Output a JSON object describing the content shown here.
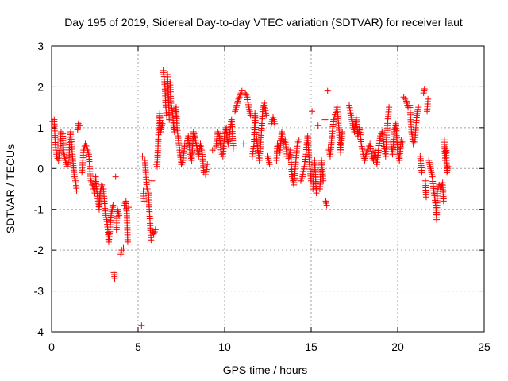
{
  "chart_data": {
    "type": "scatter",
    "title": "Day 195 of 2019, Sidereal Day-to-day VTEC variation (SDTVAR) for receiver laut",
    "xlabel": "GPS time / hours",
    "ylabel": "SDTVAR / TECUs",
    "xlim": [
      0,
      25
    ],
    "ylim": [
      -4,
      3
    ],
    "xticks": [
      0,
      5,
      10,
      15,
      20,
      25
    ],
    "yticks": [
      -4,
      -3,
      -2,
      -1,
      0,
      1,
      2,
      3
    ],
    "grid": true,
    "marker": "plus",
    "color": "#ff0000",
    "series": [
      {
        "name": "SDTVAR",
        "points": [
          [
            0.05,
            1.15
          ],
          [
            0.15,
            1.2
          ],
          [
            0.2,
            0.7
          ],
          [
            0.25,
            0.45
          ],
          [
            0.3,
            0.3
          ],
          [
            0.4,
            0.2
          ],
          [
            0.5,
            0.55
          ],
          [
            0.55,
            0.9
          ],
          [
            0.65,
            0.85
          ],
          [
            0.7,
            0.4
          ],
          [
            0.8,
            0.2
          ],
          [
            0.9,
            0.05
          ],
          [
            1.0,
            0.15
          ],
          [
            1.05,
            0.7
          ],
          [
            1.1,
            0.9
          ],
          [
            1.2,
            0.35
          ],
          [
            1.3,
            -0.15
          ],
          [
            1.4,
            -0.35
          ],
          [
            1.45,
            -0.55
          ],
          [
            1.5,
            0.95
          ],
          [
            1.55,
            1.1
          ],
          [
            1.65,
            1.05
          ],
          [
            1.75,
            -0.1
          ],
          [
            1.85,
            0.45
          ],
          [
            1.95,
            0.6
          ],
          [
            2.05,
            0.5
          ],
          [
            2.15,
            0.35
          ],
          [
            2.25,
            -0.25
          ],
          [
            2.3,
            -0.35
          ],
          [
            2.4,
            -0.45
          ],
          [
            2.5,
            -0.6
          ],
          [
            2.55,
            -0.2
          ],
          [
            2.6,
            -0.5
          ],
          [
            2.7,
            -0.8
          ],
          [
            2.75,
            -1.0
          ],
          [
            2.8,
            -0.6
          ],
          [
            2.9,
            -0.4
          ],
          [
            3.0,
            -0.5
          ],
          [
            3.1,
            -1.1
          ],
          [
            3.2,
            -1.3
          ],
          [
            3.25,
            -1.5
          ],
          [
            3.3,
            -1.8
          ],
          [
            3.35,
            -1.6
          ],
          [
            3.45,
            -1.1
          ],
          [
            3.55,
            -0.9
          ],
          [
            3.6,
            -2.55
          ],
          [
            3.65,
            -2.7
          ],
          [
            3.7,
            -0.2
          ],
          [
            3.75,
            -1.5
          ],
          [
            3.8,
            -1.0
          ],
          [
            3.9,
            -1.15
          ],
          [
            4.0,
            -2.1
          ],
          [
            4.05,
            -2.0
          ],
          [
            4.15,
            -1.95
          ],
          [
            4.2,
            -0.9
          ],
          [
            4.3,
            -0.8
          ],
          [
            4.35,
            -1.1
          ],
          [
            4.4,
            -1.8
          ],
          [
            4.45,
            -0.95
          ],
          [
            5.2,
            -3.85
          ],
          [
            5.25,
            0.3
          ],
          [
            5.3,
            -0.55
          ],
          [
            5.35,
            -0.8
          ],
          [
            5.4,
            0.2
          ],
          [
            5.5,
            -0.45
          ],
          [
            5.6,
            -0.6
          ],
          [
            5.7,
            -1.4
          ],
          [
            5.75,
            -1.75
          ],
          [
            5.8,
            -0.3
          ],
          [
            5.85,
            -1.55
          ],
          [
            5.9,
            -1.6
          ],
          [
            6.0,
            -1.5
          ],
          [
            6.05,
            0.1
          ],
          [
            6.1,
            0.05
          ],
          [
            6.15,
            0.55
          ],
          [
            6.2,
            1.05
          ],
          [
            6.25,
            1.35
          ],
          [
            6.3,
            0.9
          ],
          [
            6.4,
            1.1
          ],
          [
            6.45,
            2.4
          ],
          [
            6.5,
            2.25
          ],
          [
            6.55,
            2.0
          ],
          [
            6.6,
            1.5
          ],
          [
            6.65,
            1.3
          ],
          [
            6.7,
            2.3
          ],
          [
            6.75,
            1.8
          ],
          [
            6.8,
            1.2
          ],
          [
            6.85,
            2.1
          ],
          [
            6.9,
            1.6
          ],
          [
            7.0,
            1.35
          ],
          [
            7.05,
            1.0
          ],
          [
            7.1,
            0.9
          ],
          [
            7.15,
            1.4
          ],
          [
            7.2,
            1.5
          ],
          [
            7.25,
            1.0
          ],
          [
            7.3,
            0.8
          ],
          [
            7.4,
            0.45
          ],
          [
            7.5,
            0.1
          ],
          [
            7.6,
            0.2
          ],
          [
            7.7,
            0.6
          ],
          [
            7.8,
            0.55
          ],
          [
            7.9,
            0.8
          ],
          [
            8.0,
            0.4
          ],
          [
            8.1,
            0.2
          ],
          [
            8.2,
            0.9
          ],
          [
            8.3,
            0.75
          ],
          [
            8.4,
            0.5
          ],
          [
            8.5,
            0.3
          ],
          [
            8.6,
            0.6
          ],
          [
            8.7,
            0.4
          ],
          [
            8.8,
            -0.1
          ],
          [
            8.9,
            -0.15
          ],
          [
            9.0,
            0.1
          ],
          [
            9.3,
            0.45
          ],
          [
            9.4,
            0.5
          ],
          [
            9.5,
            0.55
          ],
          [
            9.6,
            0.9
          ],
          [
            9.7,
            0.8
          ],
          [
            9.8,
            0.4
          ],
          [
            9.9,
            0.3
          ],
          [
            10.0,
            0.85
          ],
          [
            10.1,
            1.0
          ],
          [
            10.15,
            0.7
          ],
          [
            10.2,
            0.6
          ],
          [
            10.3,
            0.9
          ],
          [
            10.4,
            1.2
          ],
          [
            10.5,
            0.5
          ],
          [
            10.6,
            1.4
          ],
          [
            10.7,
            1.55
          ],
          [
            10.8,
            1.7
          ],
          [
            10.9,
            1.8
          ],
          [
            11.0,
            1.9
          ],
          [
            11.1,
            0.6
          ],
          [
            11.2,
            1.85
          ],
          [
            11.3,
            1.75
          ],
          [
            11.4,
            1.5
          ],
          [
            11.5,
            1.3
          ],
          [
            11.6,
            0.3
          ],
          [
            11.7,
            0.6
          ],
          [
            11.75,
            1.35
          ],
          [
            11.8,
            0.95
          ],
          [
            11.9,
            0.5
          ],
          [
            12.0,
            0.2
          ],
          [
            12.1,
            0.7
          ],
          [
            12.2,
            1.45
          ],
          [
            12.3,
            1.6
          ],
          [
            12.4,
            1.3
          ],
          [
            12.5,
            0.3
          ],
          [
            12.6,
            0.1
          ],
          [
            12.7,
            1.1
          ],
          [
            12.8,
            1.25
          ],
          [
            12.9,
            1.1
          ],
          [
            13.0,
            0.2
          ],
          [
            13.05,
            0.6
          ],
          [
            13.2,
            0.4
          ],
          [
            13.3,
            0.9
          ],
          [
            13.4,
            0.6
          ],
          [
            13.5,
            0.7
          ],
          [
            13.6,
            0.3
          ],
          [
            13.7,
            0.25
          ],
          [
            13.8,
            0.45
          ],
          [
            13.9,
            -0.2
          ],
          [
            14.0,
            -0.4
          ],
          [
            14.1,
            0.1
          ],
          [
            14.2,
            0.6
          ],
          [
            14.3,
            0.7
          ],
          [
            14.4,
            -0.3
          ],
          [
            14.5,
            -0.2
          ],
          [
            14.6,
            0.05
          ],
          [
            14.7,
            0.35
          ],
          [
            14.8,
            0.8
          ],
          [
            14.9,
            0.1
          ],
          [
            15.0,
            -0.3
          ],
          [
            15.05,
            1.4
          ],
          [
            15.1,
            -0.5
          ],
          [
            15.2,
            0.2
          ],
          [
            15.3,
            -0.6
          ],
          [
            15.4,
            1.05
          ],
          [
            15.5,
            -0.5
          ],
          [
            15.6,
            0.2
          ],
          [
            15.7,
            -0.3
          ],
          [
            15.8,
            1.2
          ],
          [
            15.85,
            -0.8
          ],
          [
            15.9,
            -0.9
          ],
          [
            15.95,
            1.9
          ],
          [
            16.0,
            0.5
          ],
          [
            16.1,
            0.3
          ],
          [
            16.2,
            0.8
          ],
          [
            16.3,
            1.2
          ],
          [
            16.5,
            1.5
          ],
          [
            16.6,
            1.0
          ],
          [
            16.7,
            0.4
          ],
          [
            16.8,
            0.9
          ],
          [
            17.2,
            1.55
          ],
          [
            17.3,
            1.3
          ],
          [
            17.4,
            1.1
          ],
          [
            17.5,
            0.9
          ],
          [
            17.6,
            1.25
          ],
          [
            17.7,
            0.8
          ],
          [
            17.8,
            1.0
          ],
          [
            17.9,
            0.6
          ],
          [
            18.0,
            0.35
          ],
          [
            18.1,
            0.2
          ],
          [
            18.2,
            0.4
          ],
          [
            18.3,
            0.5
          ],
          [
            18.4,
            0.6
          ],
          [
            18.5,
            0.3
          ],
          [
            18.6,
            0.2
          ],
          [
            18.7,
            0.45
          ],
          [
            18.8,
            0.1
          ],
          [
            18.9,
            0.5
          ],
          [
            19.0,
            0.8
          ],
          [
            19.1,
            0.9
          ],
          [
            19.2,
            0.6
          ],
          [
            19.3,
            0.3
          ],
          [
            19.4,
            1.05
          ],
          [
            19.5,
            1.5
          ],
          [
            19.6,
            0.65
          ],
          [
            19.7,
            0.35
          ],
          [
            19.8,
            0.9
          ],
          [
            19.9,
            1.1
          ],
          [
            20.0,
            0.4
          ],
          [
            20.1,
            0.2
          ],
          [
            20.2,
            0.7
          ],
          [
            20.3,
            0.6
          ],
          [
            20.35,
            1.75
          ],
          [
            20.5,
            1.65
          ],
          [
            20.6,
            1.5
          ],
          [
            20.7,
            1.55
          ],
          [
            20.8,
            0.9
          ],
          [
            20.9,
            0.6
          ],
          [
            21.0,
            0.7
          ],
          [
            21.1,
            1.3
          ],
          [
            21.2,
            1.5
          ],
          [
            21.3,
            0.3
          ],
          [
            21.4,
            -0.1
          ],
          [
            21.5,
            1.85
          ],
          [
            21.55,
            1.95
          ],
          [
            21.6,
            -0.3
          ],
          [
            21.65,
            -0.7
          ],
          [
            21.7,
            1.4
          ],
          [
            21.75,
            1.7
          ],
          [
            21.8,
            0.2
          ],
          [
            21.9,
            0.0
          ],
          [
            22.0,
            -0.2
          ],
          [
            22.1,
            -0.6
          ],
          [
            22.2,
            -0.9
          ],
          [
            22.25,
            -1.25
          ],
          [
            22.3,
            -0.5
          ],
          [
            22.4,
            -0.4
          ],
          [
            22.5,
            -0.5
          ],
          [
            22.6,
            -0.35
          ],
          [
            22.65,
            -0.8
          ],
          [
            22.7,
            0.7
          ],
          [
            22.75,
            0.2
          ],
          [
            22.8,
            0.5
          ],
          [
            22.85,
            -0.1
          ],
          [
            22.9,
            0.05
          ]
        ]
      }
    ]
  }
}
